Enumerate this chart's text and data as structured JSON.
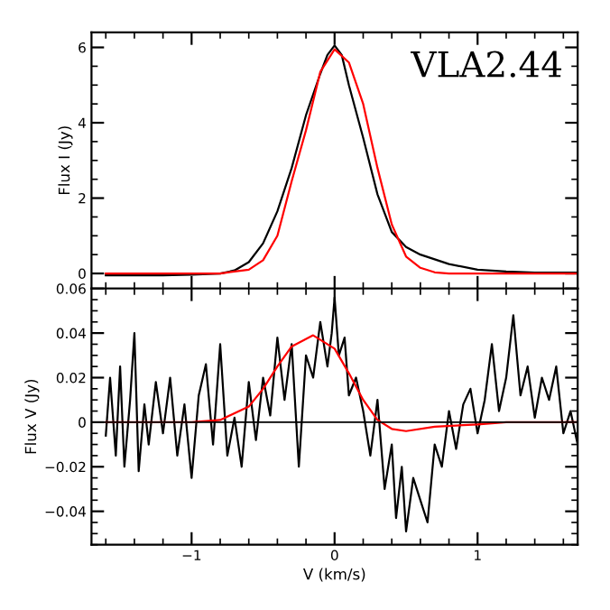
{
  "chart_data": [
    {
      "type": "line",
      "ylabel": "Flux I (Jy)",
      "annotations": [
        "VLA2.44"
      ],
      "xlim": [
        -1.7,
        1.7
      ],
      "ylim": [
        -0.4,
        6.4
      ],
      "xticks": [
        {
          "value": -1,
          "label": null
        },
        {
          "value": 0,
          "label": null
        },
        {
          "value": 1,
          "label": null
        }
      ],
      "yticks": [
        0,
        2,
        4,
        6
      ],
      "tick_labels": "y",
      "grid": false,
      "legend": false,
      "series": [
        {
          "color": "#000000",
          "x": [
            -1.6,
            -1.4,
            -1.2,
            -1.0,
            -0.8,
            -0.7,
            -0.6,
            -0.5,
            -0.4,
            -0.3,
            -0.2,
            -0.1,
            -0.05,
            0.0,
            0.05,
            0.1,
            0.2,
            0.3,
            0.4,
            0.5,
            0.6,
            0.8,
            1.0,
            1.2,
            1.4,
            1.7
          ],
          "values": [
            -0.05,
            -0.05,
            -0.05,
            -0.03,
            0.0,
            0.08,
            0.3,
            0.8,
            1.65,
            2.8,
            4.2,
            5.3,
            5.8,
            6.05,
            5.8,
            5.0,
            3.6,
            2.1,
            1.1,
            0.7,
            0.5,
            0.25,
            0.1,
            0.05,
            0.02,
            0.02
          ]
        },
        {
          "color": "#ff0000",
          "x": [
            -1.6,
            -0.8,
            -0.6,
            -0.5,
            -0.4,
            -0.3,
            -0.2,
            -0.1,
            0.0,
            0.1,
            0.2,
            0.3,
            0.4,
            0.5,
            0.6,
            0.7,
            0.8,
            1.7
          ],
          "values": [
            0,
            0,
            0.1,
            0.35,
            1.0,
            2.45,
            3.8,
            5.35,
            5.95,
            5.6,
            4.5,
            2.8,
            1.3,
            0.45,
            0.15,
            0.03,
            0,
            0
          ]
        }
      ]
    },
    {
      "type": "line",
      "xlabel": "V (km/s)",
      "ylabel": "Flux V (Jy)",
      "xlim": [
        -1.7,
        1.7
      ],
      "ylim": [
        -0.055,
        0.06
      ],
      "xticks": [
        {
          "value": -1,
          "label": "−1"
        },
        0,
        1
      ],
      "yticks": [
        {
          "value": -0.04,
          "label": "−0.04"
        },
        {
          "value": -0.02,
          "label": "−0.02"
        },
        0,
        0.02,
        0.04,
        0.06
      ],
      "grid": false,
      "legend": false,
      "series": [
        {
          "color": "#000000",
          "x": [
            -1.6,
            -1.57,
            -1.53,
            -1.5,
            -1.47,
            -1.43,
            -1.4,
            -1.37,
            -1.33,
            -1.3,
            -1.25,
            -1.2,
            -1.15,
            -1.1,
            -1.05,
            -1.0,
            -0.95,
            -0.9,
            -0.85,
            -0.8,
            -0.75,
            -0.7,
            -0.65,
            -0.6,
            -0.55,
            -0.5,
            -0.45,
            -0.4,
            -0.35,
            -0.3,
            -0.25,
            -0.2,
            -0.15,
            -0.1,
            -0.05,
            -0.02,
            0.0,
            0.03,
            0.07,
            0.1,
            0.15,
            0.2,
            0.25,
            0.3,
            0.35,
            0.4,
            0.43,
            0.47,
            0.5,
            0.55,
            0.6,
            0.65,
            0.7,
            0.75,
            0.8,
            0.85,
            0.9,
            0.95,
            1.0,
            1.05,
            1.1,
            1.15,
            1.2,
            1.25,
            1.3,
            1.35,
            1.4,
            1.45,
            1.5,
            1.55,
            1.6,
            1.65,
            1.7
          ],
          "values": [
            -0.006,
            0.02,
            -0.015,
            0.025,
            -0.02,
            0.01,
            0.04,
            -0.022,
            0.008,
            -0.01,
            0.018,
            -0.005,
            0.02,
            -0.015,
            0.008,
            -0.025,
            0.012,
            0.026,
            -0.01,
            0.035,
            -0.015,
            0.002,
            -0.02,
            0.018,
            -0.008,
            0.02,
            0.003,
            0.038,
            0.01,
            0.035,
            -0.02,
            0.03,
            0.02,
            0.045,
            0.025,
            0.04,
            0.056,
            0.03,
            0.038,
            0.012,
            0.02,
            0.005,
            -0.015,
            0.01,
            -0.03,
            -0.01,
            -0.043,
            -0.02,
            -0.049,
            -0.025,
            -0.035,
            -0.045,
            -0.01,
            -0.02,
            0.005,
            -0.012,
            0.008,
            0.015,
            -0.005,
            0.01,
            0.035,
            0.005,
            0.02,
            0.048,
            0.012,
            0.025,
            0.002,
            0.02,
            0.01,
            0.025,
            -0.005,
            0.005,
            -0.01
          ]
        },
        {
          "color": "#ff0000",
          "x": [
            -1.6,
            -1.0,
            -0.8,
            -0.6,
            -0.5,
            -0.4,
            -0.3,
            -0.15,
            0.0,
            0.1,
            0.2,
            0.3,
            0.4,
            0.5,
            0.7,
            1.0,
            1.2,
            1.7
          ],
          "values": [
            0,
            0,
            0.001,
            0.007,
            0.015,
            0.025,
            0.034,
            0.039,
            0.033,
            0.022,
            0.01,
            0.001,
            -0.003,
            -0.004,
            -0.002,
            -0.001,
            0,
            0
          ]
        }
      ],
      "ref_lines": [
        {
          "axis": "y",
          "value": 0,
          "color": "#000000"
        }
      ]
    }
  ]
}
